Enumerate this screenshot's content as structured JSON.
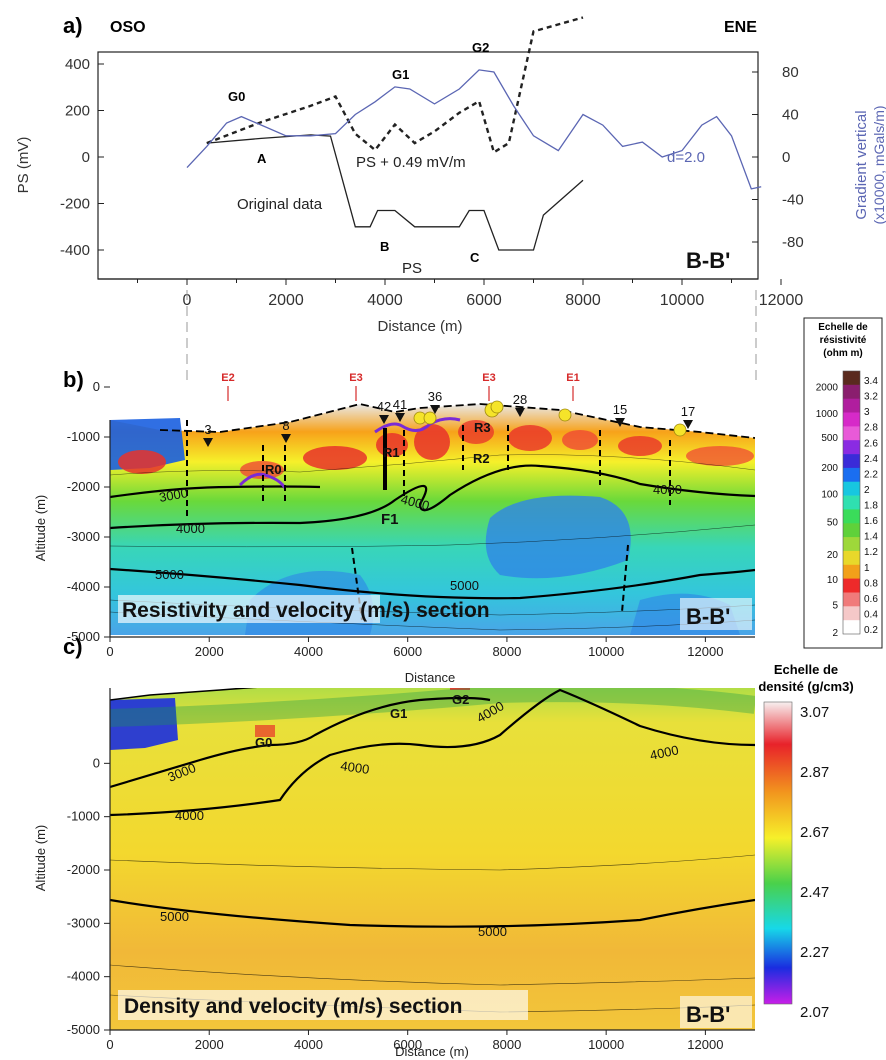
{
  "chart_data": [
    {
      "panel": "a)",
      "type": "line",
      "left_label": "OSO",
      "right_label": "ENE",
      "xlabel": "Distance (m)",
      "ylabel": "PS (mV)",
      "ylabel_right": [
        "Gradient vertical",
        "(x10000, mGals/m)"
      ],
      "xlim": [
        -2000,
        12000
      ],
      "ylim": [
        -500,
        450
      ],
      "ylim_right": [
        -100,
        100
      ],
      "xticks": [
        "0",
        "2000",
        "4000",
        "6000",
        "8000",
        "10000",
        "12000"
      ],
      "yticks": [
        "400",
        "200",
        "0",
        "-200",
        "-400"
      ],
      "yticks_right": [
        "80",
        "40",
        "0",
        "-40",
        "-80"
      ],
      "section_label": "B-B'",
      "annotations": {
        "g0": "G0",
        "g1": "G1",
        "g2": "G2",
        "a": "A",
        "b": "B",
        "c": "C",
        "original": "Original data",
        "ps": "PS",
        "ps_corr": "PS + 0.49 mV/m",
        "d": "d=2.0"
      },
      "series": [
        {
          "name": "Original data",
          "style": "solid",
          "axis": "left",
          "x": [
            400,
            1500,
            2500,
            2900,
            3400,
            3700,
            3850,
            4200,
            4600,
            5000,
            5500,
            5700,
            6000,
            6300,
            6700,
            7000,
            7200,
            8000
          ],
          "y": [
            60,
            80,
            95,
            90,
            -300,
            -300,
            -230,
            -230,
            -300,
            -300,
            -300,
            -230,
            -230,
            -400,
            -400,
            -400,
            -250,
            -100
          ]
        },
        {
          "name": "PS + 0.49 mV/m",
          "style": "dashed",
          "axis": "left",
          "x": [
            400,
            1500,
            2500,
            3000,
            3400,
            3800,
            4200,
            4600,
            5000,
            5500,
            5900,
            6200,
            6500,
            7000,
            8000
          ],
          "y": [
            60,
            150,
            220,
            260,
            100,
            30,
            140,
            60,
            110,
            190,
            240,
            20,
            60,
            540,
            600
          ]
        },
        {
          "name": "Gradient vertical",
          "style": "solid",
          "axis": "right",
          "color": "#5b66b3",
          "x": [
            0,
            400,
            800,
            1100,
            1500,
            2000,
            2500,
            3000,
            3400,
            3800,
            4200,
            4500,
            5000,
            5500,
            5900,
            6200,
            6600,
            7000,
            7500,
            8000,
            8400,
            8800,
            9200,
            9600,
            10000,
            10400,
            10700,
            11000,
            11400,
            11600
          ],
          "y": [
            -10,
            10,
            32,
            38,
            30,
            20,
            20,
            22,
            40,
            52,
            66,
            64,
            50,
            64,
            82,
            80,
            48,
            20,
            6,
            40,
            30,
            10,
            14,
            0,
            6,
            30,
            38,
            20,
            -30,
            -28
          ]
        }
      ]
    },
    {
      "panel": "b)",
      "type": "heatmap",
      "title": "Resistivity and velocity (m/s) section",
      "section_label": "B-B'",
      "xlabel": "Distance",
      "ylabel": "Altitude (m)",
      "xlim": [
        0,
        13000
      ],
      "ylim": [
        -5000,
        1000
      ],
      "xticks": [
        "0",
        "2000",
        "4000",
        "6000",
        "8000",
        "10000",
        "12000"
      ],
      "yticks": [
        "0",
        "-1000",
        "-2000",
        "-3000",
        "-4000",
        "-5000"
      ],
      "contour_labels": [
        "3000",
        "4000",
        "4000",
        "4000",
        "5000",
        "5000"
      ],
      "feature_labels": [
        "R0",
        "R1",
        "R2",
        "R3",
        "F1"
      ],
      "well_labels": [
        "3",
        "8",
        "42",
        "41",
        "36",
        "28",
        "15",
        "17"
      ],
      "electrode_labels": [
        "E2",
        "E3",
        "E3",
        "E1"
      ],
      "colorbar": {
        "title": [
          "Echelle de",
          "résistivité",
          "(ohm m)"
        ],
        "left_ticks": [
          "2000",
          "1000",
          "500",
          "200",
          "100",
          "50",
          "20",
          "10",
          "5",
          "2"
        ],
        "right_ticks": [
          "3.4",
          "3.2",
          "3",
          "2.8",
          "2.6",
          "2.4",
          "2.2",
          "2",
          "1.8",
          "1.6",
          "1.4",
          "1.2",
          "1",
          "0.8",
          "0.6",
          "0.4",
          "0.2"
        ],
        "colors": [
          "#5a2a1e",
          "#8a1e6e",
          "#b01e9e",
          "#d62ac8",
          "#e85ad8",
          "#8a2be2",
          "#3a2bd8",
          "#1a6ef0",
          "#17c7e0",
          "#2fe0b0",
          "#3adc5a",
          "#5fd13a",
          "#9ed83a",
          "#e8d82a",
          "#f2a01a",
          "#ee2a2a",
          "#f07a7a",
          "#f5c8c8",
          "#ffffff"
        ]
      }
    },
    {
      "panel": "c)",
      "type": "heatmap",
      "title": "Density and velocity (m/s) section",
      "section_label": "B-B'",
      "xlabel": "Distance (m)",
      "ylabel": "Altitude (m)",
      "xlim": [
        0,
        13000
      ],
      "ylim": [
        -5000,
        1000
      ],
      "xticks": [
        "0",
        "2000",
        "4000",
        "6000",
        "8000",
        "10000",
        "12000"
      ],
      "yticks": [
        "0",
        "-1000",
        "-2000",
        "-3000",
        "-4000",
        "-5000"
      ],
      "contour_labels": [
        "3000",
        "4000",
        "4000",
        "4000",
        "4000",
        "5000",
        "5000"
      ],
      "feature_labels": [
        "G0",
        "G1",
        "G2"
      ],
      "colorbar": {
        "title": [
          "Echelle de",
          "densité (g/cm3)"
        ],
        "ticks": [
          "3.07",
          "2.87",
          "2.67",
          "2.47",
          "2.27",
          "2.07"
        ],
        "colors": [
          "#f7f0f0",
          "#e8222a",
          "#f2961e",
          "#f6f02a",
          "#4ad14a",
          "#17d8e8",
          "#1a2de0",
          "#c81ee8"
        ]
      }
    }
  ]
}
